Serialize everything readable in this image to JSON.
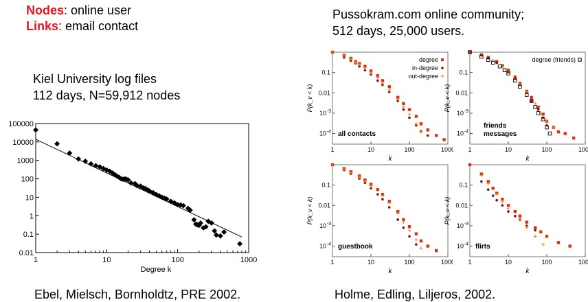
{
  "header": {
    "nodes_key": "Nodes",
    "nodes_value": ": online user",
    "links_key": "Links",
    "links_value": ":  email contact",
    "right_title": "Pussokram.com online community;",
    "right_subtitle": "512 days,  25,000 users."
  },
  "left": {
    "caption_line1": "Kiel University log files",
    "caption_line2": "112 days, N=59,912 nodes",
    "citation": "Ebel, Mielsch, Bornholdtz, PRE 2002."
  },
  "right": {
    "citation": "Holme, Edling, Liljeros, 2002."
  },
  "colors": {
    "accent_red": "#e8131b",
    "degree": "#e03010",
    "in_degree": "#7a0f14",
    "out_degree": "#f08a20",
    "friends": "#000000"
  },
  "chart_data": [
    {
      "type": "scatter",
      "xlabel": "Degree k",
      "ylabel": "",
      "x_scale": "log",
      "y_scale": "log",
      "xlim": [
        1,
        1000
      ],
      "ylim": [
        0.01,
        100000
      ],
      "x_ticks": [
        "1",
        "10",
        "100",
        "1000"
      ],
      "y_ticks": [
        "0.01",
        "0.1",
        "1",
        "10",
        "100",
        "1000",
        "10000",
        "100000"
      ],
      "series": [
        {
          "points": [
            [
              1,
              45000
            ],
            [
              2,
              8000
            ],
            [
              3,
              2500
            ],
            [
              4,
              1200
            ],
            [
              5,
              900
            ],
            [
              6,
              650
            ],
            [
              7,
              520
            ],
            [
              8,
              450
            ],
            [
              9,
              360
            ],
            [
              10,
              300
            ],
            [
              11,
              260
            ],
            [
              12,
              210
            ],
            [
              13,
              170
            ],
            [
              14,
              140
            ],
            [
              15,
              120
            ],
            [
              16,
              100
            ],
            [
              17,
              95
            ],
            [
              18,
              100
            ],
            [
              19,
              95
            ],
            [
              20,
              88
            ],
            [
              22,
              60
            ],
            [
              25,
              55
            ],
            [
              27,
              42
            ],
            [
              30,
              40
            ],
            [
              33,
              32
            ],
            [
              35,
              30
            ],
            [
              38,
              25
            ],
            [
              40,
              22
            ],
            [
              45,
              18
            ],
            [
              50,
              14
            ],
            [
              55,
              12
            ],
            [
              60,
              10
            ],
            [
              65,
              9
            ],
            [
              70,
              8
            ],
            [
              80,
              6
            ],
            [
              90,
              5
            ],
            [
              100,
              4
            ],
            [
              110,
              3.8
            ],
            [
              120,
              3.5
            ],
            [
              140,
              2.5
            ],
            [
              150,
              2
            ],
            [
              170,
              0.6
            ],
            [
              180,
              0.35
            ],
            [
              190,
              0.32
            ],
            [
              200,
              0.3
            ],
            [
              210,
              0.4
            ],
            [
              230,
              0.22
            ],
            [
              250,
              0.25
            ],
            [
              270,
              0.5
            ],
            [
              300,
              0.4
            ],
            [
              330,
              0.15
            ],
            [
              350,
              0.09
            ],
            [
              400,
              0.08
            ],
            [
              450,
              0.13
            ],
            [
              750,
              0.03
            ]
          ]
        }
      ],
      "fit_line": [
        [
          1,
          14000
        ],
        [
          800,
          0.07
        ]
      ]
    },
    {
      "type": "scatter",
      "title": "all contacts",
      "xlabel": "k",
      "ylabel": "P(k_v < k)",
      "x_scale": "log",
      "y_scale": "log",
      "xlim": [
        1,
        1000
      ],
      "ylim": [
        3e-05,
        1
      ],
      "legend": [
        "degree",
        "in-degree",
        "out-degree"
      ],
      "series": [
        {
          "name": "degree",
          "points": [
            [
              1,
              1
            ],
            [
              2,
              0.7
            ],
            [
              3,
              0.5
            ],
            [
              4,
              0.35
            ],
            [
              5,
              0.28
            ],
            [
              7,
              0.2
            ],
            [
              10,
              0.12
            ],
            [
              15,
              0.07
            ],
            [
              20,
              0.04
            ],
            [
              30,
              0.02
            ],
            [
              50,
              0.006
            ],
            [
              70,
              0.003
            ],
            [
              100,
              0.0015
            ],
            [
              150,
              0.0007
            ],
            [
              200,
              0.0003
            ],
            [
              300,
              0.00015
            ],
            [
              500,
              8e-05
            ],
            [
              800,
              5e-05
            ]
          ]
        },
        {
          "name": "in-degree",
          "points": [
            [
              1,
              1
            ],
            [
              2,
              0.55
            ],
            [
              3,
              0.38
            ],
            [
              4,
              0.28
            ],
            [
              5,
              0.2
            ],
            [
              7,
              0.13
            ],
            [
              10,
              0.08
            ],
            [
              15,
              0.04
            ],
            [
              20,
              0.025
            ],
            [
              30,
              0.011
            ],
            [
              50,
              0.004
            ],
            [
              70,
              0.0015
            ],
            [
              100,
              0.0006
            ],
            [
              150,
              0.00025
            ],
            [
              200,
              0.00013
            ],
            [
              300,
              8e-05
            ]
          ]
        },
        {
          "name": "out-degree",
          "points": [
            [
              1,
              1
            ],
            [
              2,
              0.65
            ],
            [
              3,
              0.45
            ],
            [
              4,
              0.32
            ],
            [
              5,
              0.25
            ],
            [
              7,
              0.17
            ],
            [
              10,
              0.1
            ],
            [
              15,
              0.055
            ],
            [
              20,
              0.03
            ],
            [
              30,
              0.014
            ],
            [
              50,
              0.005
            ],
            [
              70,
              0.002
            ],
            [
              100,
              0.0009
            ],
            [
              150,
              0.0003
            ],
            [
              200,
              0.00012
            ]
          ]
        }
      ]
    },
    {
      "type": "scatter",
      "title": "friends messages",
      "xlabel": "k",
      "ylabel": "P(k_v < k)",
      "x_scale": "log",
      "y_scale": "log",
      "xlim": [
        1,
        1000
      ],
      "ylim": [
        3e-05,
        1
      ],
      "legend": [
        "degree (friends)"
      ],
      "series": [
        {
          "name": "degree",
          "points": [
            [
              1,
              1
            ],
            [
              2,
              0.75
            ],
            [
              3,
              0.55
            ],
            [
              5,
              0.35
            ],
            [
              7,
              0.22
            ],
            [
              10,
              0.13
            ],
            [
              15,
              0.06
            ],
            [
              20,
              0.03
            ],
            [
              30,
              0.012
            ],
            [
              40,
              0.006
            ],
            [
              60,
              0.002
            ],
            [
              80,
              0.0009
            ],
            [
              100,
              0.0004
            ],
            [
              150,
              0.0002
            ],
            [
              200,
              0.00012
            ],
            [
              300,
              0.0001
            ],
            [
              500,
              6e-05
            ]
          ]
        },
        {
          "name": "in-degree",
          "points": [
            [
              2,
              0.7
            ],
            [
              3,
              0.5
            ],
            [
              5,
              0.3
            ],
            [
              7,
              0.2
            ],
            [
              10,
              0.1
            ],
            [
              15,
              0.05
            ],
            [
              20,
              0.025
            ],
            [
              30,
              0.01
            ],
            [
              40,
              0.004
            ],
            [
              60,
              0.0015
            ],
            [
              80,
              0.0006
            ],
            [
              100,
              0.00025
            ]
          ]
        },
        {
          "name": "out-degree",
          "points": [
            [
              2,
              0.72
            ],
            [
              4,
              0.4
            ],
            [
              7,
              0.2
            ],
            [
              10,
              0.11
            ],
            [
              20,
              0.027
            ],
            [
              30,
              0.011
            ],
            [
              50,
              0.003
            ],
            [
              70,
              0.001
            ],
            [
              100,
              0.0004
            ],
            [
              150,
              0.0002
            ]
          ]
        },
        {
          "name": "degree (friends)",
          "points": [
            [
              1,
              1
            ],
            [
              2,
              0.6
            ],
            [
              3,
              0.42
            ],
            [
              4,
              0.3
            ],
            [
              6,
              0.2
            ],
            [
              8,
              0.13
            ],
            [
              10,
              0.09
            ],
            [
              15,
              0.04
            ],
            [
              20,
              0.02
            ],
            [
              30,
              0.008
            ],
            [
              40,
              0.004
            ],
            [
              50,
              0.002
            ],
            [
              60,
              0.001
            ],
            [
              80,
              0.0005
            ],
            [
              100,
              0.0002
            ],
            [
              120,
              0.0001
            ]
          ]
        }
      ]
    },
    {
      "type": "scatter",
      "title": "guestbook",
      "xlabel": "k",
      "ylabel": "P(k_v < k)",
      "x_scale": "log",
      "y_scale": "log",
      "xlim": [
        1,
        1000
      ],
      "ylim": [
        3e-05,
        1
      ],
      "series": [
        {
          "name": "degree",
          "points": [
            [
              1,
              1
            ],
            [
              2,
              0.65
            ],
            [
              3,
              0.45
            ],
            [
              5,
              0.28
            ],
            [
              7,
              0.18
            ],
            [
              10,
              0.11
            ],
            [
              15,
              0.06
            ],
            [
              20,
              0.035
            ],
            [
              30,
              0.016
            ],
            [
              50,
              0.005
            ],
            [
              70,
              0.002
            ],
            [
              100,
              0.0009
            ],
            [
              150,
              0.0004
            ],
            [
              200,
              0.00018
            ],
            [
              300,
              0.0001
            ],
            [
              500,
              6e-05
            ]
          ]
        },
        {
          "name": "in-degree",
          "points": [
            [
              1,
              1
            ],
            [
              2,
              0.55
            ],
            [
              3,
              0.36
            ],
            [
              5,
              0.21
            ],
            [
              7,
              0.13
            ],
            [
              10,
              0.07
            ],
            [
              15,
              0.035
            ],
            [
              20,
              0.02
            ],
            [
              30,
              0.008
            ],
            [
              50,
              0.002
            ],
            [
              70,
              0.0008
            ],
            [
              100,
              0.0003
            ],
            [
              150,
              0.00012
            ]
          ]
        },
        {
          "name": "out-degree",
          "points": [
            [
              1,
              1
            ],
            [
              2,
              0.6
            ],
            [
              3,
              0.4
            ],
            [
              5,
              0.24
            ],
            [
              7,
              0.15
            ],
            [
              10,
              0.09
            ],
            [
              20,
              0.03
            ],
            [
              30,
              0.013
            ],
            [
              50,
              0.004
            ],
            [
              70,
              0.0015
            ],
            [
              100,
              0.0006
            ],
            [
              150,
              0.0002
            ],
            [
              200,
              8e-05
            ]
          ]
        }
      ]
    },
    {
      "type": "scatter",
      "title": "flirts",
      "xlabel": "k",
      "ylabel": "P(k_v < k)",
      "x_scale": "log",
      "y_scale": "log",
      "xlim": [
        1,
        1000
      ],
      "ylim": [
        3e-05,
        1
      ],
      "series": [
        {
          "name": "degree",
          "points": [
            [
              1,
              1
            ],
            [
              2,
              0.35
            ],
            [
              3,
              0.15
            ],
            [
              4,
              0.07
            ],
            [
              5,
              0.04
            ],
            [
              7,
              0.02
            ],
            [
              10,
              0.01
            ],
            [
              15,
              0.005
            ],
            [
              20,
              0.003
            ],
            [
              30,
              0.0015
            ],
            [
              50,
              0.0008
            ],
            [
              70,
              0.0005
            ],
            [
              100,
              0.0003
            ],
            [
              200,
              0.00015
            ],
            [
              400,
              0.0001
            ]
          ]
        },
        {
          "name": "in-degree",
          "points": [
            [
              2,
              0.15
            ],
            [
              3,
              0.06
            ],
            [
              4,
              0.03
            ],
            [
              5,
              0.018
            ],
            [
              7,
              0.01
            ],
            [
              10,
              0.005
            ],
            [
              15,
              0.003
            ],
            [
              20,
              0.002
            ],
            [
              30,
              0.001
            ],
            [
              50,
              0.0006
            ]
          ]
        },
        {
          "name": "out-degree",
          "points": [
            [
              2,
              0.3
            ],
            [
              3,
              0.12
            ],
            [
              5,
              0.035
            ],
            [
              7,
              0.015
            ],
            [
              10,
              0.007
            ],
            [
              20,
              0.002
            ],
            [
              30,
              0.0008
            ],
            [
              50,
              0.0003
            ],
            [
              80,
              0.00012
            ]
          ]
        }
      ]
    }
  ]
}
